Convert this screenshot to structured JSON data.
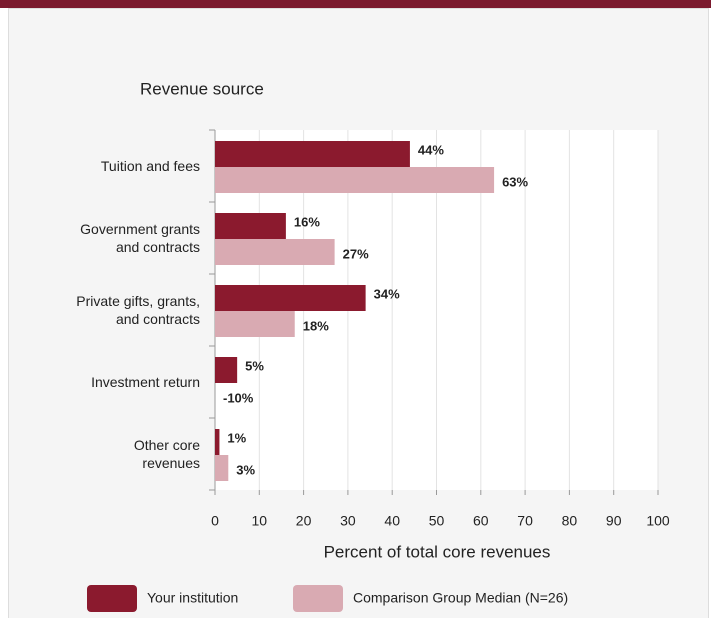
{
  "chart_data": {
    "type": "bar",
    "orientation": "horizontal",
    "title": "Revenue source",
    "x_label": "Percent of total core revenues",
    "categories": [
      "Tuition and fees",
      "Government grants\nand contracts",
      "Private gifts, grants,\nand contracts",
      "Investment return",
      "Other core\nrevenues"
    ],
    "series": [
      {
        "name": "Your institution",
        "color": "#8b1a2e",
        "values": [
          44,
          16,
          34,
          5,
          1
        ],
        "value_labels": [
          "44%",
          "16%",
          "34%",
          "5%",
          "1%"
        ]
      },
      {
        "name": "Comparison Group Median (N=26)",
        "color": "#d9aab2",
        "values": [
          63,
          27,
          18,
          -10,
          3
        ],
        "value_labels": [
          "63%",
          "27%",
          "18%",
          "-10%",
          "3%"
        ]
      }
    ],
    "xlim": [
      0,
      100
    ],
    "xticks": [
      0,
      10,
      20,
      30,
      40,
      50,
      60,
      70,
      80,
      90,
      100
    ],
    "grid": true
  }
}
